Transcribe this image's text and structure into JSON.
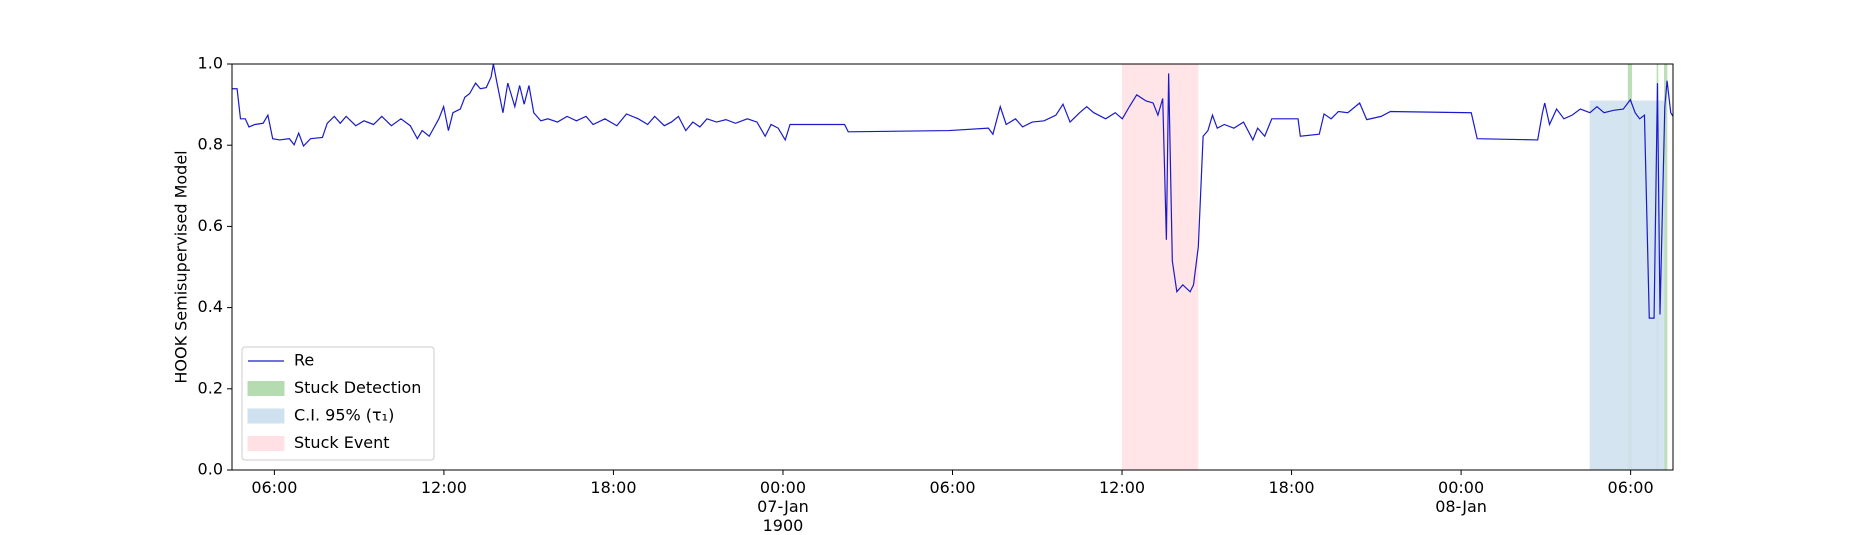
{
  "chart_data": {
    "type": "line",
    "ylabel": "HOOK Semisupervised Model",
    "xlim": [
      -19.5,
      31.5
    ],
    "xticks": [
      {
        "value": -18,
        "label": "06:00"
      },
      {
        "value": -12,
        "label": "12:00"
      },
      {
        "value": -6,
        "label": "18:00"
      },
      {
        "value": 0,
        "label": "00:00\n07-Jan\n1900"
      },
      {
        "value": 6,
        "label": "06:00"
      },
      {
        "value": 12,
        "label": "12:00"
      },
      {
        "value": 18,
        "label": "18:00"
      },
      {
        "value": 24,
        "label": "00:00\n08-Jan"
      },
      {
        "value": 30,
        "label": "06:00"
      }
    ],
    "ylim": [
      0,
      1
    ],
    "yticks": [
      {
        "value": 0,
        "label": "0.0"
      },
      {
        "value": 0.2,
        "label": "0.2"
      },
      {
        "value": 0.4,
        "label": "0.4"
      },
      {
        "value": 0.6,
        "label": "0.6"
      },
      {
        "value": 0.8,
        "label": "0.8"
      },
      {
        "value": 1,
        "label": "1.0"
      }
    ],
    "x": [
      -19.49,
      -19.32,
      -19.2,
      -19.03,
      -18.9,
      -18.69,
      -18.4,
      -18.23,
      -18.06,
      -17.81,
      -17.47,
      -17.3,
      -17.14,
      -16.97,
      -16.72,
      -16.3,
      -16.13,
      -15.88,
      -15.67,
      -15.46,
      -15.12,
      -14.83,
      -14.49,
      -14.2,
      -13.86,
      -13.52,
      -13.19,
      -12.94,
      -12.77,
      -12.52,
      -12.18,
      -12.01,
      -11.84,
      -11.68,
      -11.42,
      -11.26,
      -11.09,
      -10.88,
      -10.71,
      -10.5,
      -10.33,
      -10.25,
      -10.12,
      -9.91,
      -9.74,
      -9.49,
      -9.32,
      -9.16,
      -8.99,
      -8.82,
      -8.57,
      -8.32,
      -7.98,
      -7.64,
      -7.31,
      -6.97,
      -6.72,
      -6.3,
      -5.88,
      -5.54,
      -5.12,
      -4.79,
      -4.54,
      -4.2,
      -3.95,
      -3.7,
      -3.44,
      -3.19,
      -2.94,
      -2.69,
      -2.35,
      -2.02,
      -1.68,
      -1.26,
      -0.92,
      -0.63,
      -0.42,
      -0.17,
      0.08,
      0.25,
      2.18,
      2.31,
      5.88,
      7.27,
      7.43,
      7.69,
      7.9,
      8.23,
      8.48,
      8.82,
      9.24,
      9.66,
      9.91,
      10.16,
      10.5,
      10.75,
      11.0,
      11.42,
      11.76,
      12.01,
      12.26,
      12.52,
      12.85,
      13.1,
      13.27,
      13.44,
      13.57,
      13.65,
      13.78,
      13.94,
      14.15,
      14.41,
      14.53,
      14.7,
      14.87,
      15.04,
      15.2,
      15.37,
      15.62,
      15.96,
      16.3,
      16.63,
      16.8,
      17.05,
      17.3,
      17.72,
      18.23,
      18.31,
      18.98,
      19.15,
      19.4,
      19.66,
      19.99,
      20.41,
      20.66,
      21.17,
      21.5,
      24.36,
      24.57,
      26.71,
      26.88,
      26.96,
      27.13,
      27.38,
      27.64,
      27.93,
      28.22,
      28.56,
      28.81,
      29.06,
      29.4,
      29.74,
      29.99,
      30.16,
      30.32,
      30.49,
      30.66,
      30.83,
      30.95,
      31.04,
      31.21,
      31.29,
      31.42,
      31.5
    ],
    "series": [
      {
        "name": "Re",
        "color": "#1a1acc",
        "values": [
          0.939,
          0.939,
          0.865,
          0.865,
          0.845,
          0.851,
          0.854,
          0.874,
          0.816,
          0.813,
          0.816,
          0.801,
          0.83,
          0.798,
          0.816,
          0.819,
          0.854,
          0.871,
          0.854,
          0.871,
          0.848,
          0.86,
          0.851,
          0.871,
          0.848,
          0.865,
          0.848,
          0.816,
          0.836,
          0.822,
          0.865,
          0.895,
          0.836,
          0.88,
          0.889,
          0.918,
          0.927,
          0.953,
          0.939,
          0.942,
          0.968,
          1.0,
          0.953,
          0.88,
          0.953,
          0.895,
          0.947,
          0.901,
          0.947,
          0.88,
          0.86,
          0.865,
          0.857,
          0.871,
          0.86,
          0.871,
          0.851,
          0.865,
          0.848,
          0.877,
          0.865,
          0.851,
          0.871,
          0.848,
          0.857,
          0.871,
          0.836,
          0.857,
          0.845,
          0.865,
          0.857,
          0.863,
          0.854,
          0.865,
          0.857,
          0.822,
          0.851,
          0.842,
          0.813,
          0.851,
          0.851,
          0.833,
          0.836,
          0.842,
          0.827,
          0.895,
          0.851,
          0.865,
          0.845,
          0.857,
          0.86,
          0.874,
          0.901,
          0.857,
          0.88,
          0.895,
          0.88,
          0.865,
          0.88,
          0.865,
          0.895,
          0.924,
          0.909,
          0.904,
          0.874,
          0.915,
          0.567,
          0.977,
          0.515,
          0.439,
          0.456,
          0.439,
          0.456,
          0.55,
          0.822,
          0.836,
          0.874,
          0.842,
          0.851,
          0.842,
          0.857,
          0.813,
          0.842,
          0.822,
          0.865,
          0.865,
          0.865,
          0.822,
          0.827,
          0.877,
          0.865,
          0.883,
          0.88,
          0.904,
          0.863,
          0.871,
          0.883,
          0.88,
          0.816,
          0.813,
          0.88,
          0.904,
          0.851,
          0.889,
          0.865,
          0.874,
          0.889,
          0.88,
          0.895,
          0.88,
          0.886,
          0.889,
          0.912,
          0.88,
          0.865,
          0.874,
          0.374,
          0.374,
          0.953,
          0.383,
          0.895,
          0.959,
          0.88,
          0.871
        ]
      }
    ],
    "regions": [
      {
        "name": "Stuck Detection",
        "color": "#b5dcb0",
        "spans": [
          [
            29.9,
            30.05
          ],
          [
            30.92,
            30.98
          ],
          [
            31.18,
            31.3
          ]
        ]
      },
      {
        "name": "C.I. 95% (τ₁)",
        "color": "#cfe1ee",
        "spans": [
          [
            28.55,
            31.2
          ]
        ],
        "ytop": 0.91
      },
      {
        "name": "Stuck Event",
        "color": "#ffe1e5",
        "spans": [
          [
            12.0,
            14.7
          ]
        ]
      }
    ]
  }
}
